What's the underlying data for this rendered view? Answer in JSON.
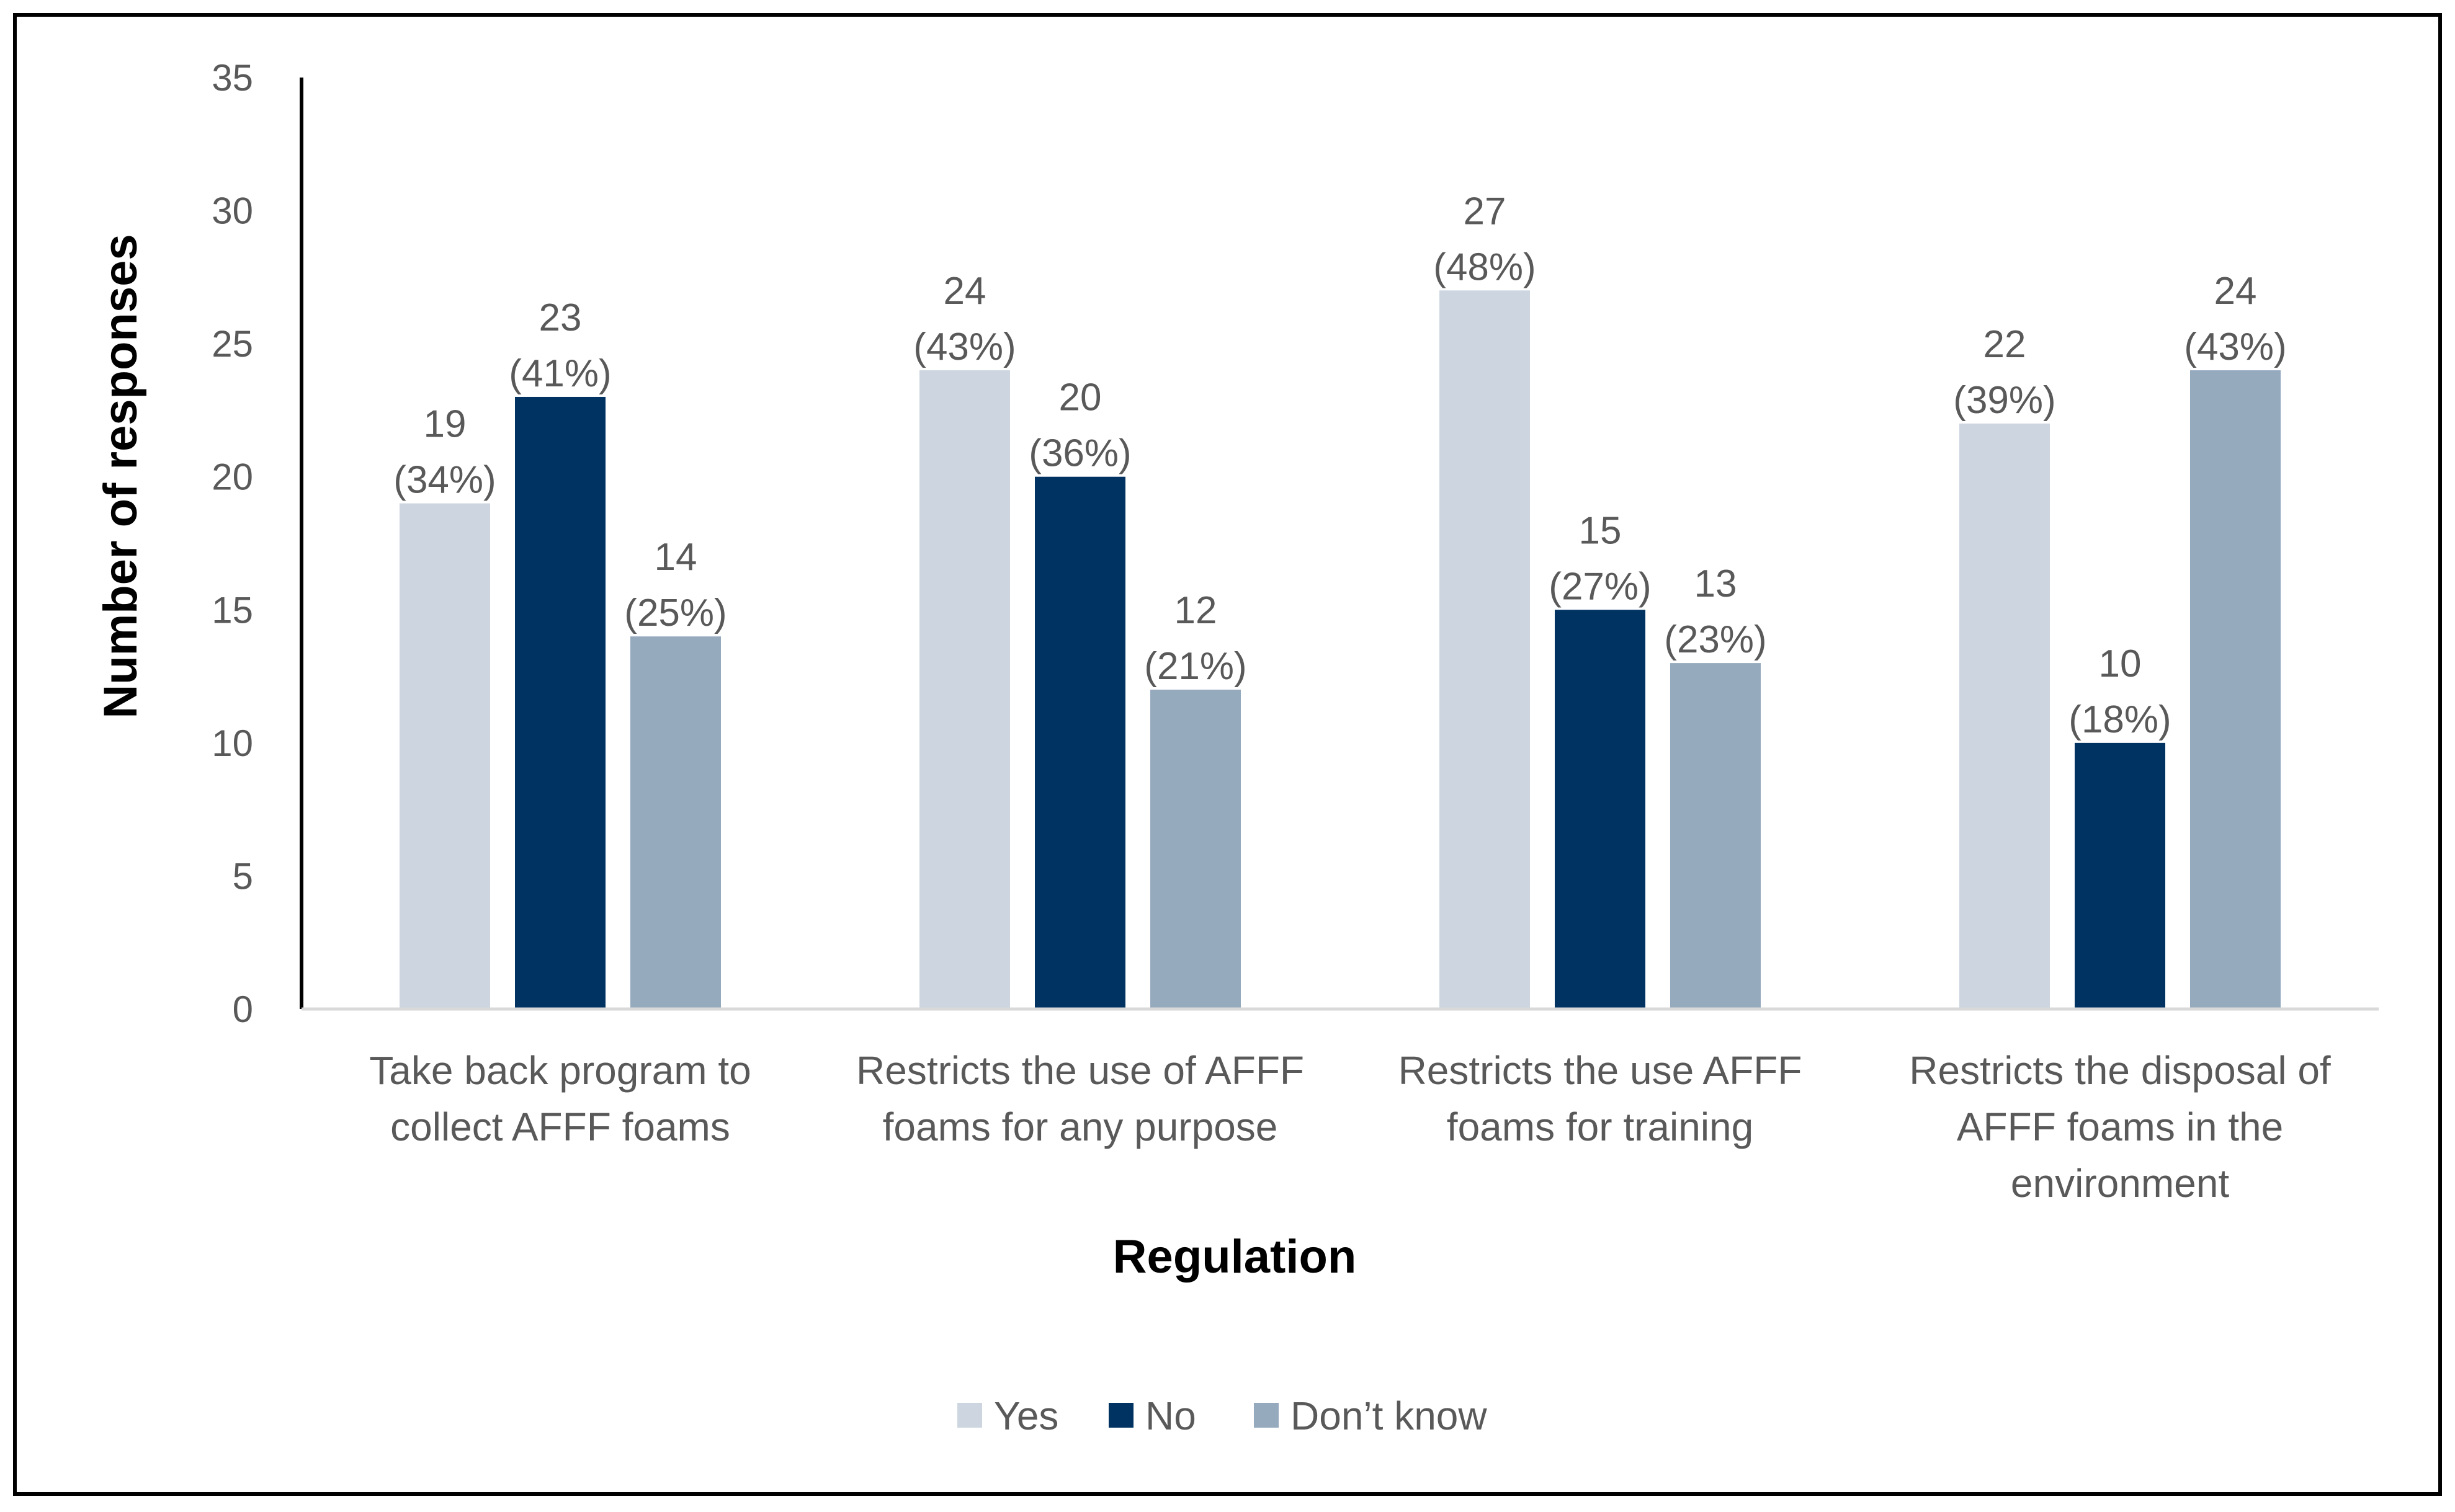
{
  "chart_data": {
    "type": "bar",
    "title": "",
    "xlabel": "Regulation",
    "ylabel": "Number of responses",
    "ylim": [
      0,
      35
    ],
    "yticks": [
      "0",
      "5",
      "10",
      "15",
      "20",
      "25",
      "30",
      "35"
    ],
    "grid": false,
    "legend_position": "bottom",
    "categories": [
      [
        "Take back program to",
        "collect AFFF foams"
      ],
      [
        "Restricts the use of AFFF",
        "foams for any purpose"
      ],
      [
        "Restricts the use AFFF",
        "foams for training"
      ],
      [
        "Restricts the disposal of",
        "AFFF foams in the",
        "environment"
      ]
    ],
    "series": [
      {
        "name": "Yes",
        "color": "#cdd6e0",
        "values": [
          19,
          24,
          27,
          22
        ],
        "labels": [
          [
            "19",
            "(34%)"
          ],
          [
            "24",
            "(43%)"
          ],
          [
            "27",
            "(48%)"
          ],
          [
            "22",
            "(39%)"
          ]
        ]
      },
      {
        "name": "No",
        "color": "#003361",
        "values": [
          23,
          20,
          15,
          10
        ],
        "labels": [
          [
            "23",
            "(41%)"
          ],
          [
            "20",
            "(36%)"
          ],
          [
            "15",
            "(27%)"
          ],
          [
            "10",
            "(18%)"
          ]
        ]
      },
      {
        "name": "Don’t know",
        "color": "#96aabe",
        "values": [
          14,
          12,
          13,
          24
        ],
        "labels": [
          [
            "14",
            "(25%)"
          ],
          [
            "12",
            "(21%)"
          ],
          [
            "13",
            "(23%)"
          ],
          [
            "24",
            "(43%)"
          ]
        ]
      }
    ]
  }
}
